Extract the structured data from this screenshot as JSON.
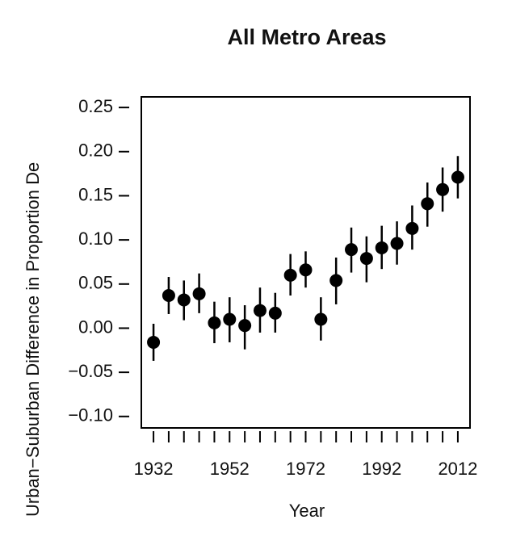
{
  "chart_data": {
    "type": "errorbar",
    "title": "All Metro Areas",
    "x_label": "Year",
    "y_label": "Urban−Suburban Difference in Proportion De",
    "x": [
      1932,
      1936,
      1940,
      1944,
      1948,
      1952,
      1956,
      1960,
      1964,
      1968,
      1972,
      1976,
      1980,
      1984,
      1988,
      1992,
      1996,
      2000,
      2004,
      2008,
      2012
    ],
    "values": [
      -0.016,
      0.037,
      0.032,
      0.039,
      0.006,
      0.01,
      0.003,
      0.02,
      0.017,
      0.06,
      0.066,
      0.01,
      0.054,
      0.089,
      0.079,
      0.091,
      0.096,
      0.113,
      0.141,
      0.157,
      0.171
    ],
    "lower": [
      -0.037,
      0.016,
      0.009,
      0.017,
      -0.017,
      -0.016,
      -0.024,
      -0.005,
      -0.005,
      0.037,
      0.046,
      -0.014,
      0.027,
      0.063,
      0.052,
      0.067,
      0.072,
      0.089,
      0.115,
      0.132,
      0.147
    ],
    "upper": [
      0.005,
      0.058,
      0.054,
      0.062,
      0.03,
      0.035,
      0.026,
      0.046,
      0.04,
      0.084,
      0.087,
      0.035,
      0.08,
      0.114,
      0.104,
      0.116,
      0.121,
      0.139,
      0.165,
      0.182,
      0.195
    ],
    "color": "#000000",
    "xlim": [
      1928.8,
      2015.2
    ],
    "xticks": [
      1932,
      1952,
      1972,
      1992,
      2012
    ],
    "ylim": [
      -0.113,
      0.262
    ],
    "yticks": [
      {
        "value": 0.25,
        "label": "0.25"
      },
      {
        "value": 0.2,
        "label": "0.20"
      },
      {
        "value": 0.15,
        "label": "0.15"
      },
      {
        "value": 0.1,
        "label": "0.10"
      },
      {
        "value": 0.05,
        "label": "0.05"
      },
      {
        "value": 0,
        "label": "0.00"
      },
      {
        "value": -0.05,
        "label": "−0.05"
      },
      {
        "value": -0.1,
        "label": "−0.10"
      }
    ]
  }
}
